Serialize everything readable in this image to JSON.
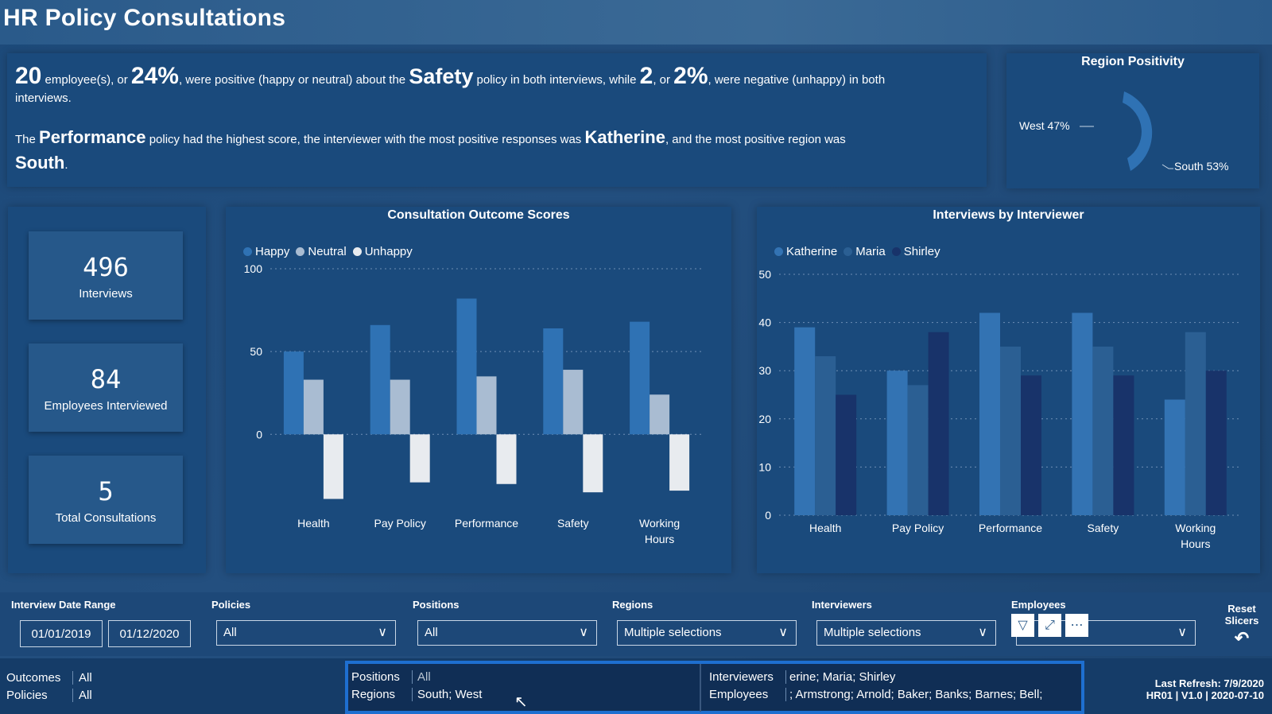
{
  "title": "HR Policy Consultations",
  "summary": {
    "count_pos": "20",
    "t1": " employee(s), or ",
    "pct_pos": "24%",
    "t2": ", were positive (happy or neutral) about the ",
    "policy": "Safety",
    "t3": " policy in both interviews, while ",
    "count_neg": "2",
    "t4": ", or ",
    "pct_neg": "2%",
    "t5": ", were negative (unhappy) in both",
    "t6": "interviews.",
    "l2a": "The ",
    "top_policy": "Performance",
    "l2b": " policy had the highest score, the interviewer with the most positive responses was ",
    "top_interviewer": "Katherine",
    "l2c": ", and the most positive region was",
    "top_region": "South",
    "l2d": "."
  },
  "region_positivity": {
    "title": "Region Positivity",
    "west_label": "West 47%",
    "south_label": "South 53%",
    "slices": [
      {
        "name": "West",
        "value": 47
      },
      {
        "name": "South",
        "value": 53
      }
    ],
    "color": "#2f72b4"
  },
  "kpis": [
    {
      "value": "496",
      "label": "Interviews"
    },
    {
      "value": "84",
      "label": "Employees Interviewed"
    },
    {
      "value": "5",
      "label": "Total Consultations"
    }
  ],
  "chart_data": [
    {
      "type": "bar",
      "title": "Consultation Outcome Scores",
      "categories": [
        "Health",
        "Pay Policy",
        "Performance",
        "Safety",
        "Working Hours"
      ],
      "series": [
        {
          "name": "Happy",
          "values": [
            50,
            66,
            82,
            64,
            68
          ],
          "color": "#2f72b4"
        },
        {
          "name": "Neutral",
          "values": [
            33,
            33,
            35,
            39,
            24
          ],
          "color": "#a9bcd2"
        },
        {
          "name": "Unhappy",
          "values": [
            -39,
            -29,
            -30,
            -35,
            -34
          ],
          "color": "#e8ebef"
        }
      ],
      "yticks": [
        "100",
        "50",
        "0"
      ],
      "ylim": [
        -45,
        100
      ]
    },
    {
      "type": "bar",
      "title": "Interviews by Interviewer",
      "categories": [
        "Health",
        "Pay Policy",
        "Performance",
        "Safety",
        "Working Hours"
      ],
      "series": [
        {
          "name": "Katherine",
          "values": [
            39,
            30,
            42,
            42,
            24
          ],
          "color": "#3373b3"
        },
        {
          "name": "Maria",
          "values": [
            33,
            27,
            35,
            35,
            38
          ],
          "color": "#2b5f93"
        },
        {
          "name": "Shirley",
          "values": [
            25,
            38,
            29,
            29,
            30
          ],
          "color": "#18336a"
        }
      ],
      "yticks": [
        "50",
        "40",
        "30",
        "20",
        "10",
        "0"
      ],
      "ylim": [
        0,
        50
      ]
    }
  ],
  "slicers": {
    "date_label": "Interview Date Range",
    "date_from": "01/01/2019",
    "date_to": "01/12/2020",
    "policies_label": "Policies",
    "policies_value": "All",
    "positions_label": "Positions",
    "positions_value": "All",
    "regions_label": "Regions",
    "regions_value": "Multiple selections",
    "interviewers_label": "Interviewers",
    "interviewers_value": "Multiple selections",
    "employees_label": "Employees",
    "employees_value": "",
    "reset_label_1": "Reset",
    "reset_label_2": "Slicers"
  },
  "footer": {
    "outcomes_label": "Outcomes",
    "outcomes_value": "All",
    "policies_label": "Policies",
    "policies_value": "All",
    "refresh_1": "Last Refresh: 7/9/2020",
    "refresh_2": "HR01 | V1.0 | 2020-07-10"
  },
  "tooltip": {
    "positions_label": "Positions",
    "positions_value": "All",
    "regions_label": "Regions",
    "regions_value": "South; West",
    "interviewers_label": "Interviewers",
    "interviewers_value": "erine; Maria; Shirley",
    "employees_label": "Employees",
    "employees_value": "; Armstrong; Arnold; Baker; Banks; Barnes; Bell;"
  }
}
